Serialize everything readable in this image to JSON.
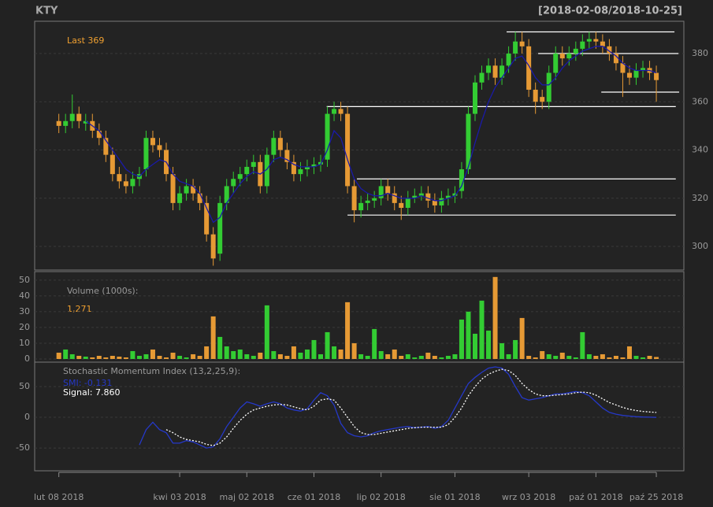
{
  "chart_data": [
    {
      "type": "candlestick",
      "title": "KTY",
      "subtitle": "[2018-02-08/2018-10-25]",
      "annotation": "Last 369",
      "up_color": "#33cc33",
      "down_color": "#e69a35",
      "grid": true,
      "xlim": [
        -3.6,
        93.1
      ],
      "xticks": [
        {
          "value": 0,
          "label": "lut 08 2018"
        },
        {
          "value": 18,
          "label": "kwi 03 2018"
        },
        {
          "value": 28,
          "label": "maj 02 2018"
        },
        {
          "value": 38,
          "label": "cze 01 2018"
        },
        {
          "value": 48,
          "label": "lip 02 2018"
        },
        {
          "value": 59,
          "label": "sie 01 2018"
        },
        {
          "value": 70,
          "label": "wrz 03 2018"
        },
        {
          "value": 80,
          "label": "paź 01 2018"
        },
        {
          "value": 89,
          "label": "paź 25 2018"
        }
      ],
      "ylim": [
        290.2,
        393.4
      ],
      "yticks": [
        300,
        320,
        340,
        360,
        380
      ],
      "open": [
        352,
        350,
        352,
        355,
        351,
        352,
        348,
        345,
        338,
        330,
        327,
        325,
        328,
        332,
        345,
        342,
        340,
        330,
        318,
        322,
        325,
        322,
        318,
        305,
        297,
        318,
        325,
        328,
        330,
        333,
        335,
        325,
        338,
        345,
        340,
        335,
        330,
        332,
        333,
        334,
        336,
        355,
        357,
        355,
        325,
        315,
        318,
        319,
        320,
        325,
        322,
        318,
        316,
        320,
        321,
        322,
        319,
        317,
        320,
        321,
        323,
        332,
        355,
        368,
        372,
        375,
        370,
        375,
        380,
        385,
        383,
        365,
        362,
        360,
        372,
        380,
        378,
        380,
        382,
        385,
        386,
        385,
        383,
        380,
        376,
        372,
        370,
        373,
        374,
        372
      ],
      "high": [
        355,
        355,
        363,
        358,
        355,
        355,
        351,
        348,
        341,
        333,
        330,
        331,
        333,
        348,
        348,
        345,
        343,
        333,
        325,
        328,
        328,
        325,
        321,
        308,
        321,
        328,
        331,
        333,
        336,
        338,
        338,
        341,
        348,
        348,
        343,
        338,
        335,
        336,
        337,
        338,
        358,
        360,
        360,
        358,
        328,
        321,
        322,
        323,
        328,
        328,
        325,
        321,
        323,
        324,
        325,
        325,
        322,
        323,
        324,
        325,
        335,
        358,
        371,
        375,
        378,
        378,
        378,
        383,
        389,
        389,
        386,
        368,
        365,
        375,
        383,
        383,
        383,
        385,
        388,
        389,
        389,
        388,
        386,
        383,
        379,
        375,
        376,
        377,
        377,
        375
      ],
      "low": [
        347,
        347,
        349,
        349,
        348,
        345,
        342,
        335,
        327,
        324,
        322,
        322,
        325,
        329,
        339,
        337,
        327,
        315,
        315,
        319,
        319,
        315,
        302,
        292,
        294,
        315,
        322,
        325,
        327,
        330,
        322,
        322,
        335,
        337,
        332,
        327,
        327,
        329,
        330,
        331,
        333,
        352,
        352,
        322,
        310,
        312,
        315,
        316,
        317,
        319,
        315,
        311,
        313,
        318,
        319,
        316,
        314,
        314,
        317,
        318,
        320,
        330,
        352,
        365,
        369,
        367,
        367,
        372,
        377,
        380,
        362,
        355,
        357,
        357,
        369,
        375,
        375,
        377,
        379,
        382,
        382,
        380,
        377,
        373,
        362,
        367,
        367,
        370,
        369,
        360
      ],
      "close": [
        350,
        352,
        355,
        352,
        352,
        348,
        345,
        338,
        330,
        327,
        325,
        328,
        330,
        345,
        342,
        340,
        330,
        318,
        322,
        325,
        322,
        318,
        305,
        295,
        318,
        325,
        328,
        330,
        333,
        335,
        325,
        338,
        345,
        340,
        335,
        330,
        332,
        333,
        334,
        335,
        355,
        357,
        355,
        325,
        315,
        318,
        319,
        320,
        325,
        322,
        318,
        316,
        320,
        321,
        322,
        319,
        317,
        320,
        321,
        322,
        332,
        355,
        368,
        372,
        375,
        370,
        375,
        380,
        385,
        383,
        365,
        360,
        360,
        372,
        380,
        378,
        380,
        382,
        385,
        386,
        385,
        383,
        380,
        376,
        372,
        370,
        373,
        374,
        372,
        369
      ],
      "ma": {
        "color": "#1a1aa8",
        "values": [
          null,
          null,
          null,
          null,
          352,
          350,
          348,
          344,
          340,
          336,
          332,
          330,
          329,
          332,
          334,
          336,
          335,
          330,
          327,
          326,
          325,
          322,
          316,
          310,
          312,
          318,
          322,
          326,
          329,
          331,
          330,
          332,
          336,
          337,
          336,
          334,
          333,
          333,
          333,
          334,
          340,
          348,
          345,
          336,
          328,
          324,
          322,
          321,
          321,
          322,
          321,
          320,
          320,
          320,
          321,
          320,
          319,
          319,
          320,
          321,
          325,
          333,
          343,
          352,
          360,
          366,
          370,
          374,
          378,
          379,
          375,
          370,
          367,
          367,
          370,
          374,
          377,
          379,
          381,
          382,
          383,
          383,
          381,
          379,
          376,
          374,
          373,
          373,
          373,
          372
        ]
      },
      "levels": [
        {
          "value": 389,
          "from": 66.7,
          "to": 91.7
        },
        {
          "value": 380,
          "from": 71.4,
          "to": 92.3
        },
        {
          "value": 364,
          "from": 80.8,
          "to": 92.4
        },
        {
          "value": 358,
          "from": 39.9,
          "to": 91.9
        },
        {
          "value": 328,
          "from": 44.4,
          "to": 91.9
        },
        {
          "value": 313,
          "from": 43,
          "to": 91.9
        }
      ]
    },
    {
      "type": "bar",
      "title": "Volume (1000s):",
      "annotation": "1,271",
      "grid": true,
      "ylim": [
        -2,
        55.4
      ],
      "yticks": [
        0,
        10,
        20,
        30,
        40,
        50
      ],
      "values": [
        4,
        6,
        3,
        2,
        1.5,
        1,
        2,
        1,
        2,
        1.5,
        1,
        5,
        2,
        3,
        6,
        2,
        1,
        4,
        2,
        1,
        3,
        2,
        8,
        27,
        14,
        8,
        5,
        6,
        3,
        2,
        4,
        34,
        5,
        3,
        2,
        8,
        4,
        6,
        12,
        3,
        17,
        8,
        6,
        36,
        10,
        3,
        2,
        19,
        5,
        3,
        6,
        2,
        3,
        1,
        2,
        4,
        2,
        1,
        2,
        3,
        25,
        30,
        16,
        37,
        18,
        52,
        10,
        3,
        12,
        26,
        2,
        1,
        5,
        3,
        2,
        4,
        2,
        1,
        17,
        3,
        2,
        3,
        1,
        2,
        1,
        8,
        2,
        1,
        2,
        1.271
      ]
    },
    {
      "type": "line",
      "title": "Stochastic Momentum Index (13,2,25,9):",
      "grid": true,
      "ylim": [
        -87,
        89.7
      ],
      "yticks": [
        -50,
        0,
        50
      ],
      "series": [
        {
          "name": "SMI: -0.131",
          "color": "#2538c8",
          "dash": false,
          "values": [
            null,
            null,
            null,
            null,
            null,
            null,
            null,
            null,
            null,
            null,
            null,
            null,
            -45,
            -20,
            -8,
            -20,
            -25,
            -42,
            -42,
            -38,
            -40,
            -45,
            -50,
            -48,
            -35,
            -15,
            0,
            15,
            25,
            22,
            18,
            22,
            25,
            22,
            15,
            12,
            10,
            14,
            28,
            40,
            35,
            20,
            -10,
            -25,
            -30,
            -32,
            -30,
            -25,
            -22,
            -20,
            -18,
            -16,
            -15,
            -17,
            -16,
            -15,
            -18,
            -15,
            -5,
            15,
            35,
            55,
            65,
            73,
            80,
            82,
            80,
            70,
            50,
            32,
            28,
            30,
            32,
            35,
            38,
            38,
            40,
            42,
            40,
            35,
            25,
            15,
            8,
            5,
            3,
            2,
            1,
            0.5,
            0.2,
            -0.131
          ]
        },
        {
          "name": "Signal: 7.860",
          "color": "#ffffff",
          "dash": true,
          "values": [
            null,
            null,
            null,
            null,
            null,
            null,
            null,
            null,
            null,
            null,
            null,
            null,
            null,
            null,
            null,
            null,
            -20,
            -25,
            -32,
            -36,
            -38,
            -40,
            -44,
            -46,
            -42,
            -32,
            -18,
            -5,
            5,
            12,
            15,
            18,
            20,
            21,
            20,
            17,
            14,
            12,
            18,
            28,
            30,
            28,
            15,
            0,
            -15,
            -25,
            -28,
            -28,
            -26,
            -24,
            -22,
            -20,
            -18,
            -17,
            -16,
            -16,
            -16,
            -16,
            -12,
            0,
            15,
            35,
            50,
            62,
            70,
            75,
            78,
            76,
            68,
            55,
            45,
            38,
            35,
            35,
            36,
            37,
            38,
            40,
            41,
            40,
            36,
            30,
            24,
            20,
            16,
            13,
            11,
            9.5,
            8.6,
            7.86
          ]
        }
      ]
    }
  ]
}
